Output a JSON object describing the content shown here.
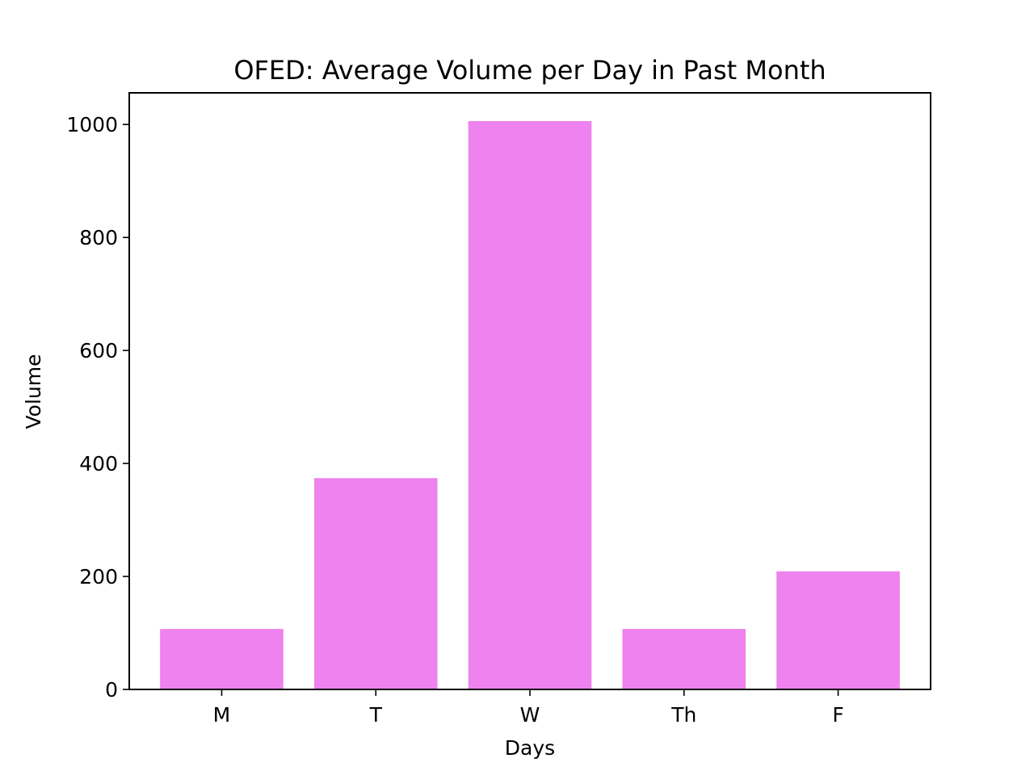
{
  "chart_data": {
    "type": "bar",
    "title": "OFED: Average Volume per Day in Past Month",
    "xlabel": "Days",
    "ylabel": "Volume",
    "categories": [
      "M",
      "T",
      "W",
      "Th",
      "F"
    ],
    "values": [
      107,
      374,
      1006,
      107,
      209
    ],
    "ylim": [
      0,
      1056
    ],
    "yticks": [
      0,
      200,
      400,
      600,
      800,
      1000
    ],
    "grid": false,
    "legend": "none",
    "bar_color": "#ee82ee"
  }
}
